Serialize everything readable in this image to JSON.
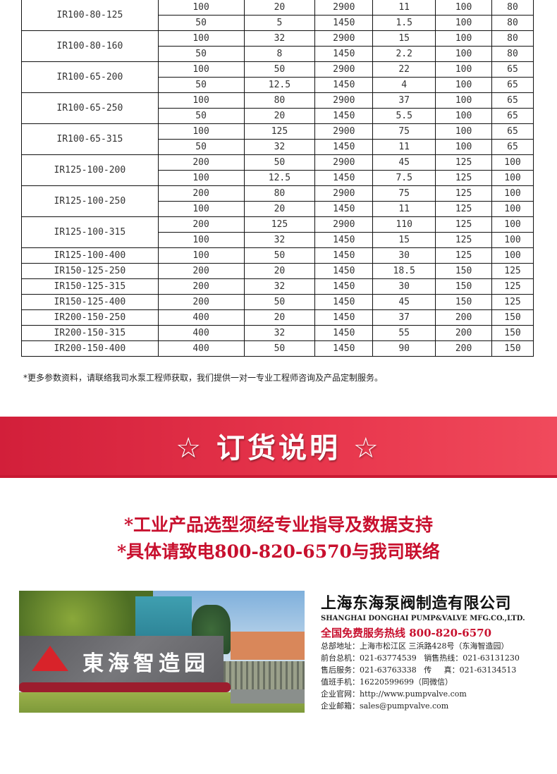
{
  "spec_table": {
    "models": [
      {
        "model": "IR100-80-125",
        "rows": [
          [
            "100",
            "20",
            "2900",
            "11",
            "100",
            "80"
          ],
          [
            "50",
            "5",
            "1450",
            "1.5",
            "100",
            "80"
          ]
        ]
      },
      {
        "model": "IR100-80-160",
        "rows": [
          [
            "100",
            "32",
            "2900",
            "15",
            "100",
            "80"
          ],
          [
            "50",
            "8",
            "1450",
            "2.2",
            "100",
            "80"
          ]
        ]
      },
      {
        "model": "IR100-65-200",
        "rows": [
          [
            "100",
            "50",
            "2900",
            "22",
            "100",
            "65"
          ],
          [
            "50",
            "12.5",
            "1450",
            "4",
            "100",
            "65"
          ]
        ]
      },
      {
        "model": "IR100-65-250",
        "rows": [
          [
            "100",
            "80",
            "2900",
            "37",
            "100",
            "65"
          ],
          [
            "50",
            "20",
            "1450",
            "5.5",
            "100",
            "65"
          ]
        ]
      },
      {
        "model": "IR100-65-315",
        "rows": [
          [
            "100",
            "125",
            "2900",
            "75",
            "100",
            "65"
          ],
          [
            "50",
            "32",
            "1450",
            "11",
            "100",
            "65"
          ]
        ]
      },
      {
        "model": "IR125-100-200",
        "rows": [
          [
            "200",
            "50",
            "2900",
            "45",
            "125",
            "100"
          ],
          [
            "100",
            "12.5",
            "1450",
            "7.5",
            "125",
            "100"
          ]
        ]
      },
      {
        "model": "IR125-100-250",
        "rows": [
          [
            "200",
            "80",
            "2900",
            "75",
            "125",
            "100"
          ],
          [
            "100",
            "20",
            "1450",
            "11",
            "125",
            "100"
          ]
        ]
      },
      {
        "model": "IR125-100-315",
        "rows": [
          [
            "200",
            "125",
            "2900",
            "110",
            "125",
            "100"
          ],
          [
            "100",
            "32",
            "1450",
            "15",
            "125",
            "100"
          ]
        ]
      },
      {
        "model": "IR125-100-400",
        "rows": [
          [
            "100",
            "50",
            "1450",
            "30",
            "125",
            "100"
          ]
        ]
      },
      {
        "model": "IR150-125-250",
        "rows": [
          [
            "200",
            "20",
            "1450",
            "18.5",
            "150",
            "125"
          ]
        ]
      },
      {
        "model": "IR150-125-315",
        "rows": [
          [
            "200",
            "32",
            "1450",
            "30",
            "150",
            "125"
          ]
        ]
      },
      {
        "model": "IR150-125-400",
        "rows": [
          [
            "200",
            "50",
            "1450",
            "45",
            "150",
            "125"
          ]
        ]
      },
      {
        "model": "IR200-150-250",
        "rows": [
          [
            "400",
            "20",
            "1450",
            "37",
            "200",
            "150"
          ]
        ]
      },
      {
        "model": "IR200-150-315",
        "rows": [
          [
            "400",
            "32",
            "1450",
            "55",
            "200",
            "150"
          ]
        ]
      },
      {
        "model": "IR200-150-400",
        "rows": [
          [
            "400",
            "50",
            "1450",
            "90",
            "200",
            "150"
          ]
        ]
      }
    ]
  },
  "note": "*更多参数资料，请联络我司水泵工程师获取，我们提供一对一专业工程师咨询及产品定制服务。",
  "banner": {
    "title": "☆ 订货说明 ☆",
    "color": "#e0304a"
  },
  "order_lines": [
    "*工业产品选型须经专业指导及数据支持",
    "*具体请致电800-820-6570与我司联络"
  ],
  "photo": {
    "sign_text": "東海智造园"
  },
  "company": {
    "name": "上海东海泵阀制造有限公司",
    "name_en": "SHANGHAI DONGHAI PUMP&VALVE MFG.CO.,LTD.",
    "hotline": "全国免费服务热线  800-820-6570",
    "lines": [
      "总部地址：上海市松江区 三浜路428号（东海智造园）",
      "前台总机：021-63774539   销售热线：021-63131230",
      "售后服务：021-63763338   传     真：021-63134513",
      "值班手机：16220599699（同微信）",
      "企业官网：http://www.pumpvalve.com",
      "企业邮箱：sales@pumpvalve.com"
    ]
  }
}
